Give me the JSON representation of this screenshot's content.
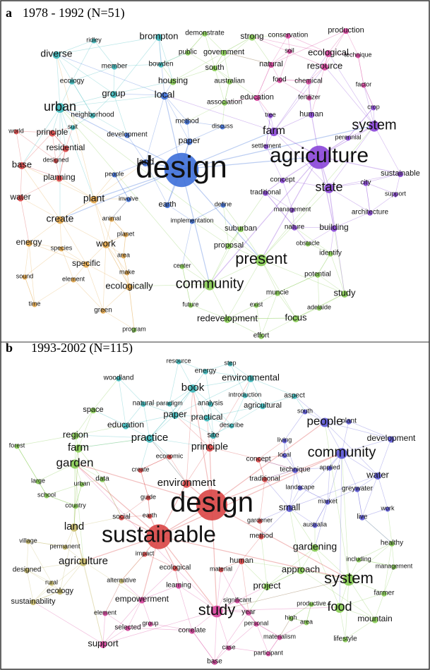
{
  "panels": [
    {
      "letter": "a",
      "title": "1978 - 1992 (N=51)",
      "nodes": [
        "brompton",
        "demonstrate",
        "strong",
        "conservation",
        "production",
        "ridley",
        "diverse",
        "member",
        "bowden",
        "public",
        "government",
        "ecological",
        "soil",
        "technique",
        "natural",
        "resource",
        "ecology",
        "south",
        "housing",
        "australian",
        "food",
        "chemical",
        "factor",
        "group",
        "local",
        "association",
        "education",
        "fertilizer",
        "crop",
        "urban",
        "neighborhood",
        "method",
        "discuss",
        "tree",
        "human",
        "system",
        "suit",
        "world",
        "principle",
        "development",
        "paper",
        "farm",
        "perennial",
        "residential",
        "designed",
        "land",
        "settlement",
        "agriculture",
        "base",
        "people",
        "design",
        "sustainable",
        "planning",
        "concept",
        "city",
        "state",
        "water",
        "plant",
        "involve",
        "define",
        "earth",
        "traditional",
        "support",
        "create",
        "animal",
        "management",
        "architecture",
        "implementation",
        "planet",
        "suburban",
        "building",
        "nature",
        "energy",
        "species",
        "work",
        "proposal",
        "obstacle",
        "present",
        "identify",
        "area",
        "specific",
        "make",
        "center",
        "potential",
        "sound",
        "element",
        "ecologically",
        "community",
        "study",
        "muncie",
        "time",
        "green",
        "future",
        "exist",
        "adelaide",
        "focus",
        "redevelopment",
        "program",
        "effort"
      ]
    },
    {
      "letter": "b",
      "title": "1993-2002 (N=115)",
      "nodes": [
        "resource",
        "step",
        "woodland",
        "energy",
        "environmental",
        "book",
        "introduction",
        "aspect",
        "natural",
        "paradigm",
        "analysis",
        "agricultural",
        "south",
        "plant",
        "space",
        "paper",
        "people",
        "education",
        "practical",
        "development",
        "region",
        "farm",
        "describe",
        "practice",
        "site",
        "community",
        "living",
        "forest",
        "principle",
        "economic",
        "local",
        "garden",
        "concept",
        "technique",
        "applied",
        "water",
        "create",
        "data",
        "traditional",
        "large",
        "environment",
        "landscape",
        "greywater",
        "school",
        "urban",
        "guide",
        "market",
        "small",
        "work",
        "design",
        "country",
        "social",
        "earth",
        "live",
        "gardener",
        "australia",
        "land",
        "method",
        "sustainable",
        "gardening",
        "village",
        "healthy",
        "permanent",
        "impact",
        "human",
        "including",
        "agriculture",
        "alternative",
        "ecological",
        "material",
        "approach",
        "management",
        "designed",
        "rural",
        "learning",
        "project",
        "system",
        "farmer",
        "ecology",
        "significant",
        "sustainability",
        "empowerment",
        "productive",
        "food",
        "study",
        "element",
        "year",
        "personal",
        "high",
        "area",
        "mountain",
        "selected",
        "group",
        "correlate",
        "materialism",
        "lifestyle",
        "support",
        "case",
        "participant",
        "base"
      ]
    }
  ]
}
